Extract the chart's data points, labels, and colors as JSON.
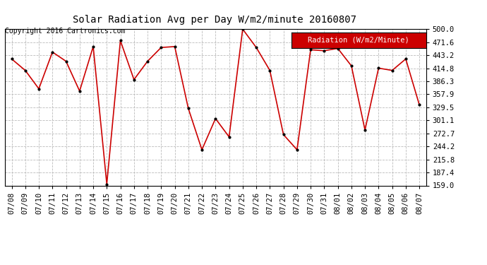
{
  "title": "Solar Radiation Avg per Day W/m2/minute 20160807",
  "copyright": "Copyright 2016 Cartronics.com",
  "legend_label": "Radiation (W/m2/Minute)",
  "x_labels": [
    "07/08",
    "07/09",
    "07/10",
    "07/11",
    "07/12",
    "07/13",
    "07/14",
    "07/15",
    "07/16",
    "07/17",
    "07/18",
    "07/19",
    "07/20",
    "07/21",
    "07/22",
    "07/23",
    "07/24",
    "07/25",
    "07/26",
    "07/27",
    "07/28",
    "07/29",
    "07/30",
    "07/31",
    "08/01",
    "08/02",
    "08/03",
    "08/04",
    "08/05",
    "08/06",
    "08/07"
  ],
  "y_values": [
    435,
    410,
    370,
    450,
    430,
    365,
    462,
    162,
    475,
    390,
    430,
    460,
    462,
    327,
    237,
    305,
    265,
    500,
    460,
    410,
    270,
    237,
    455,
    453,
    458,
    420,
    280,
    415,
    410,
    435,
    335
  ],
  "y_ticks": [
    159.0,
    187.4,
    215.8,
    244.2,
    272.7,
    301.1,
    329.5,
    357.9,
    386.3,
    414.8,
    443.2,
    471.6,
    500.0
  ],
  "y_min": 159.0,
  "y_max": 500.0,
  "line_color": "#cc0000",
  "marker_color": "#000000",
  "bg_color": "#ffffff",
  "plot_bg_color": "#ffffff",
  "grid_color": "#bbbbbb",
  "legend_bg": "#cc0000",
  "legend_text_color": "#ffffff",
  "title_fontsize": 10,
  "copyright_fontsize": 7,
  "tick_fontsize": 7.5,
  "legend_fontsize": 7.5
}
